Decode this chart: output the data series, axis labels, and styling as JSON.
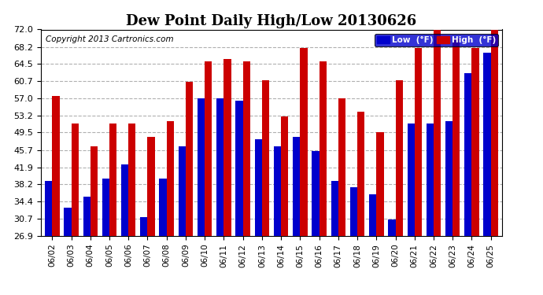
{
  "title": "Dew Point Daily High/Low 20130626",
  "copyright": "Copyright 2013 Cartronics.com",
  "dates": [
    "06/02",
    "06/03",
    "06/04",
    "06/05",
    "06/06",
    "06/07",
    "06/08",
    "06/09",
    "06/10",
    "06/11",
    "06/12",
    "06/13",
    "06/14",
    "06/15",
    "06/16",
    "06/17",
    "06/18",
    "06/19",
    "06/20",
    "06/21",
    "06/22",
    "06/23",
    "06/24",
    "06/25"
  ],
  "low_values": [
    39.0,
    33.0,
    35.5,
    39.5,
    42.5,
    31.0,
    39.5,
    46.5,
    57.0,
    57.0,
    56.5,
    48.0,
    46.5,
    48.5,
    45.5,
    39.0,
    37.5,
    36.0,
    30.5,
    51.5,
    51.5,
    52.0,
    62.5,
    67.0
  ],
  "high_values": [
    57.5,
    51.5,
    46.5,
    51.5,
    51.5,
    48.5,
    52.0,
    60.5,
    65.0,
    65.5,
    65.0,
    61.0,
    53.0,
    68.0,
    65.0,
    57.0,
    54.0,
    49.5,
    61.0,
    68.0,
    72.0,
    70.0,
    68.0,
    72.0
  ],
  "low_color": "#0000cc",
  "high_color": "#cc0000",
  "bg_color": "#ffffff",
  "plot_bg_color": "#ffffff",
  "grid_color": "#b0b0b0",
  "ylim_min": 26.9,
  "ylim_max": 72.0,
  "yticks": [
    26.9,
    30.7,
    34.4,
    38.2,
    41.9,
    45.7,
    49.5,
    53.2,
    57.0,
    60.7,
    64.5,
    68.2,
    72.0
  ],
  "title_fontsize": 13,
  "copyright_fontsize": 7.5,
  "bar_width": 0.38
}
